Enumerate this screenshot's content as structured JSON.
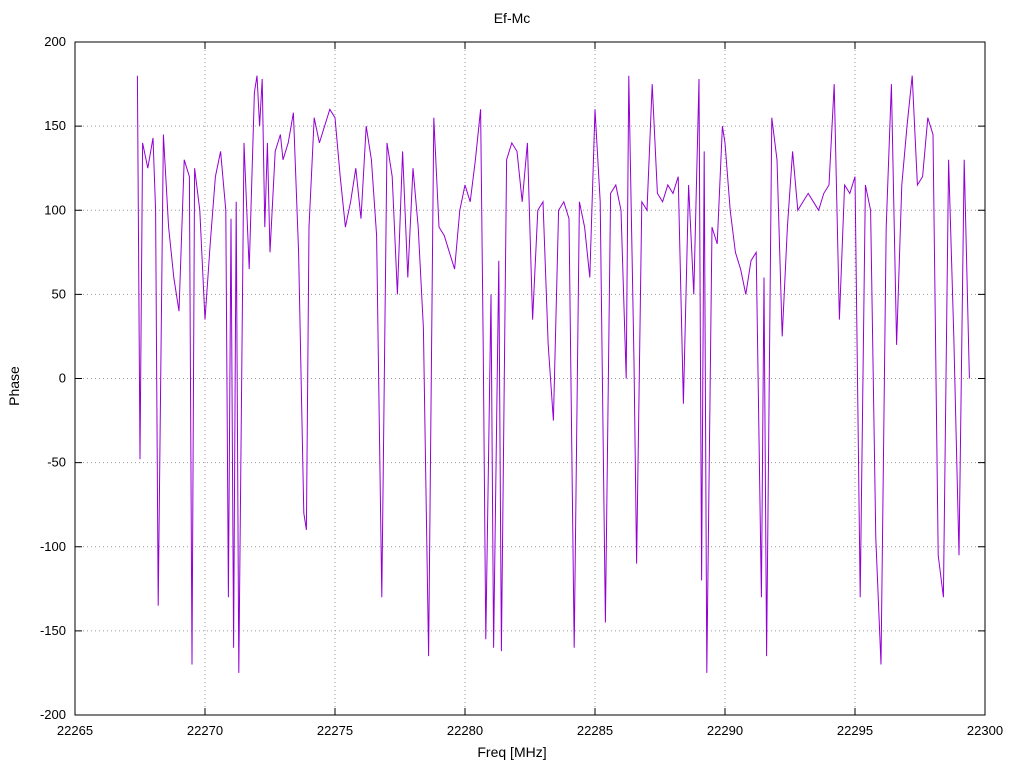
{
  "chart": {
    "title": "Ef-Mc",
    "xlabel": "Freq [MHz]",
    "ylabel": "Phase"
  },
  "chart_data": {
    "type": "line",
    "title": "Ef-Mc",
    "xlabel": "Freq [MHz]",
    "ylabel": "Phase",
    "xlim": [
      22265,
      22300
    ],
    "ylim": [
      -200,
      200
    ],
    "xticks": [
      22265,
      22270,
      22275,
      22280,
      22285,
      22290,
      22295,
      22300
    ],
    "yticks": [
      -200,
      -150,
      -100,
      -50,
      0,
      50,
      100,
      150,
      200
    ],
    "grid": true,
    "legend": "none",
    "line_color": "#9400d3",
    "series": [
      {
        "name": "Ef-Mc phase",
        "points": [
          [
            22267.4,
            180
          ],
          [
            22267.5,
            -48
          ],
          [
            22267.6,
            140
          ],
          [
            22267.8,
            125
          ],
          [
            22268.0,
            143
          ],
          [
            22268.1,
            100
          ],
          [
            22268.2,
            -135
          ],
          [
            22268.4,
            145
          ],
          [
            22268.6,
            90
          ],
          [
            22268.8,
            60
          ],
          [
            22269.0,
            40
          ],
          [
            22269.2,
            130
          ],
          [
            22269.4,
            120
          ],
          [
            22269.5,
            -170
          ],
          [
            22269.6,
            125
          ],
          [
            22269.8,
            100
          ],
          [
            22270.0,
            35
          ],
          [
            22270.2,
            80
          ],
          [
            22270.4,
            120
          ],
          [
            22270.6,
            135
          ],
          [
            22270.8,
            100
          ],
          [
            22270.9,
            -130
          ],
          [
            22271.0,
            95
          ],
          [
            22271.1,
            -160
          ],
          [
            22271.2,
            105
          ],
          [
            22271.3,
            -175
          ],
          [
            22271.5,
            140
          ],
          [
            22271.7,
            65
          ],
          [
            22271.9,
            170
          ],
          [
            22272.0,
            180
          ],
          [
            22272.1,
            150
          ],
          [
            22272.2,
            178
          ],
          [
            22272.3,
            90
          ],
          [
            22272.4,
            140
          ],
          [
            22272.5,
            75
          ],
          [
            22272.7,
            135
          ],
          [
            22272.9,
            145
          ],
          [
            22273.0,
            130
          ],
          [
            22273.2,
            140
          ],
          [
            22273.4,
            158
          ],
          [
            22273.6,
            75
          ],
          [
            22273.8,
            -80
          ],
          [
            22273.9,
            -90
          ],
          [
            22274.0,
            90
          ],
          [
            22274.2,
            155
          ],
          [
            22274.4,
            140
          ],
          [
            22274.6,
            150
          ],
          [
            22274.8,
            160
          ],
          [
            22275.0,
            155
          ],
          [
            22275.2,
            120
          ],
          [
            22275.4,
            90
          ],
          [
            22275.6,
            105
          ],
          [
            22275.8,
            125
          ],
          [
            22276.0,
            95
          ],
          [
            22276.2,
            150
          ],
          [
            22276.4,
            130
          ],
          [
            22276.6,
            85
          ],
          [
            22276.8,
            -130
          ],
          [
            22277.0,
            140
          ],
          [
            22277.2,
            120
          ],
          [
            22277.4,
            50
          ],
          [
            22277.6,
            135
          ],
          [
            22277.8,
            60
          ],
          [
            22278.0,
            125
          ],
          [
            22278.2,
            90
          ],
          [
            22278.4,
            30
          ],
          [
            22278.6,
            -165
          ],
          [
            22278.8,
            155
          ],
          [
            22279.0,
            90
          ],
          [
            22279.2,
            85
          ],
          [
            22279.4,
            75
          ],
          [
            22279.6,
            65
          ],
          [
            22279.8,
            100
          ],
          [
            22280.0,
            115
          ],
          [
            22280.2,
            105
          ],
          [
            22280.4,
            130
          ],
          [
            22280.6,
            160
          ],
          [
            22280.7,
            20
          ],
          [
            22280.8,
            -155
          ],
          [
            22281.0,
            50
          ],
          [
            22281.1,
            -160
          ],
          [
            22281.3,
            70
          ],
          [
            22281.4,
            -162
          ],
          [
            22281.6,
            130
          ],
          [
            22281.8,
            140
          ],
          [
            22282.0,
            135
          ],
          [
            22282.2,
            105
          ],
          [
            22282.4,
            140
          ],
          [
            22282.6,
            35
          ],
          [
            22282.8,
            100
          ],
          [
            22283.0,
            105
          ],
          [
            22283.2,
            20
          ],
          [
            22283.4,
            -25
          ],
          [
            22283.6,
            100
          ],
          [
            22283.8,
            105
          ],
          [
            22284.0,
            95
          ],
          [
            22284.2,
            -160
          ],
          [
            22284.4,
            105
          ],
          [
            22284.6,
            90
          ],
          [
            22284.8,
            60
          ],
          [
            22285.0,
            160
          ],
          [
            22285.2,
            105
          ],
          [
            22285.4,
            -145
          ],
          [
            22285.6,
            110
          ],
          [
            22285.8,
            115
          ],
          [
            22286.0,
            100
          ],
          [
            22286.2,
            0
          ],
          [
            22286.3,
            180
          ],
          [
            22286.5,
            10
          ],
          [
            22286.6,
            -110
          ],
          [
            22286.8,
            105
          ],
          [
            22287.0,
            100
          ],
          [
            22287.2,
            175
          ],
          [
            22287.4,
            110
          ],
          [
            22287.6,
            105
          ],
          [
            22287.8,
            115
          ],
          [
            22288.0,
            110
          ],
          [
            22288.2,
            120
          ],
          [
            22288.4,
            -15
          ],
          [
            22288.6,
            115
          ],
          [
            22288.8,
            50
          ],
          [
            22289.0,
            178
          ],
          [
            22289.1,
            -120
          ],
          [
            22289.2,
            135
          ],
          [
            22289.3,
            -175
          ],
          [
            22289.5,
            90
          ],
          [
            22289.7,
            80
          ],
          [
            22289.9,
            150
          ],
          [
            22290.0,
            140
          ],
          [
            22290.2,
            100
          ],
          [
            22290.4,
            75
          ],
          [
            22290.6,
            65
          ],
          [
            22290.8,
            50
          ],
          [
            22291.0,
            70
          ],
          [
            22291.2,
            75
          ],
          [
            22291.4,
            -130
          ],
          [
            22291.5,
            60
          ],
          [
            22291.6,
            -165
          ],
          [
            22291.8,
            155
          ],
          [
            22292.0,
            130
          ],
          [
            22292.2,
            25
          ],
          [
            22292.4,
            90
          ],
          [
            22292.6,
            135
          ],
          [
            22292.8,
            100
          ],
          [
            22293.0,
            105
          ],
          [
            22293.2,
            110
          ],
          [
            22293.4,
            105
          ],
          [
            22293.6,
            100
          ],
          [
            22293.8,
            110
          ],
          [
            22294.0,
            115
          ],
          [
            22294.2,
            175
          ],
          [
            22294.4,
            35
          ],
          [
            22294.6,
            115
          ],
          [
            22294.8,
            110
          ],
          [
            22295.0,
            120
          ],
          [
            22295.2,
            -130
          ],
          [
            22295.4,
            115
          ],
          [
            22295.6,
            100
          ],
          [
            22295.8,
            -95
          ],
          [
            22296.0,
            -170
          ],
          [
            22296.2,
            90
          ],
          [
            22296.4,
            175
          ],
          [
            22296.6,
            20
          ],
          [
            22296.8,
            115
          ],
          [
            22297.0,
            150
          ],
          [
            22297.2,
            180
          ],
          [
            22297.4,
            115
          ],
          [
            22297.6,
            120
          ],
          [
            22297.8,
            155
          ],
          [
            22298.0,
            145
          ],
          [
            22298.2,
            -105
          ],
          [
            22298.4,
            -130
          ],
          [
            22298.6,
            130
          ],
          [
            22298.8,
            25
          ],
          [
            22299.0,
            -105
          ],
          [
            22299.2,
            130
          ],
          [
            22299.4,
            0
          ]
        ]
      }
    ]
  }
}
